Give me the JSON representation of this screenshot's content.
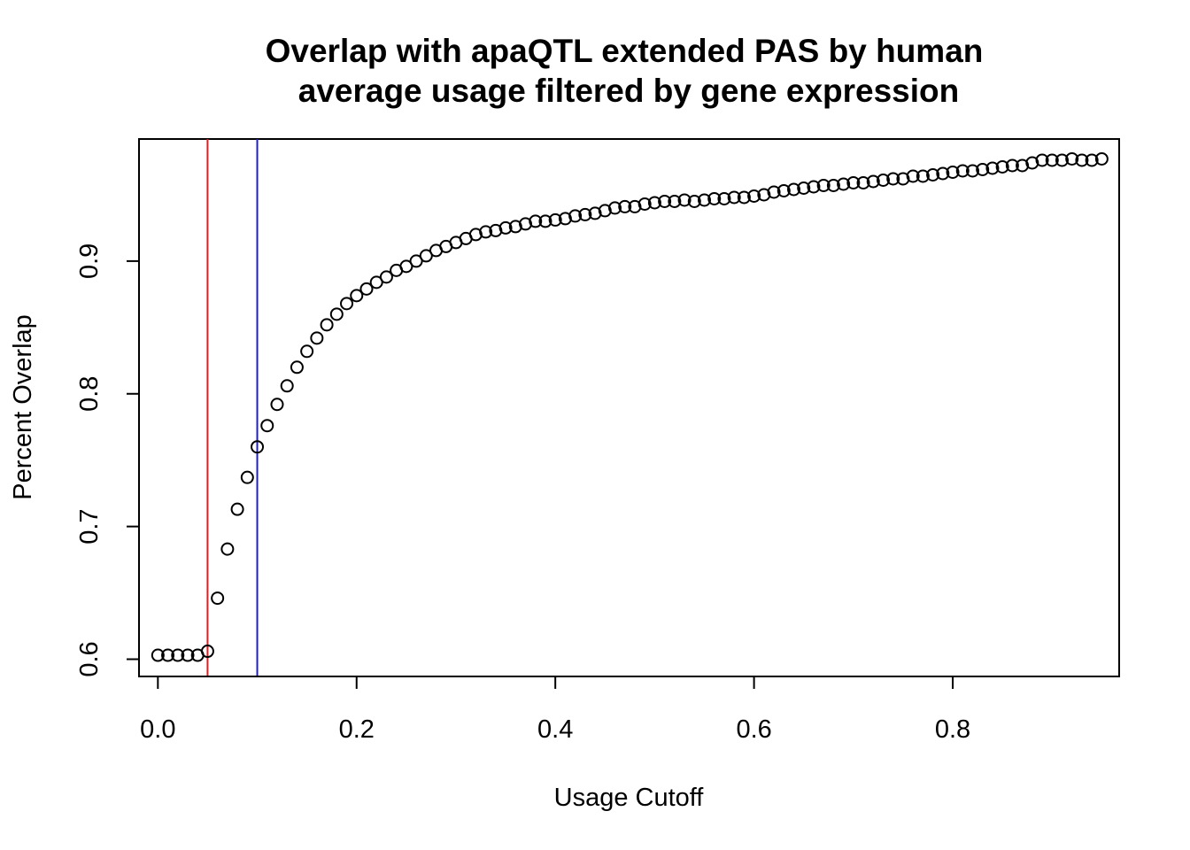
{
  "chart_data": {
    "type": "scatter",
    "title": [
      "Overlap with apaQTL extended PAS by human",
      "average usage filtered by gene expression"
    ],
    "xlabel": "Usage Cutoff",
    "ylabel": "Percent Overlap",
    "xlim": [
      -0.019,
      0.9675
    ],
    "ylim": [
      0.587,
      0.992
    ],
    "x_ticks": [
      0.0,
      0.2,
      0.4,
      0.6,
      0.8
    ],
    "x_tick_labels": [
      "0.0",
      "0.2",
      "0.4",
      "0.6",
      "0.8"
    ],
    "y_ticks": [
      0.6,
      0.7,
      0.8,
      0.9
    ],
    "y_tick_labels": [
      "0.6",
      "0.7",
      "0.8",
      "0.9"
    ],
    "grid": false,
    "marker": "open-circle",
    "vlines": [
      {
        "x": 0.05,
        "color": "#e41a1c"
      },
      {
        "x": 0.1,
        "color": "#1f1fbf"
      }
    ],
    "x": [
      0.0,
      0.01,
      0.02,
      0.03,
      0.04,
      0.05,
      0.06,
      0.07,
      0.08,
      0.09,
      0.1,
      0.11,
      0.12,
      0.13,
      0.14,
      0.15,
      0.16,
      0.17,
      0.18,
      0.19,
      0.2,
      0.21,
      0.22,
      0.23,
      0.24,
      0.25,
      0.26,
      0.27,
      0.28,
      0.29,
      0.3,
      0.31,
      0.32,
      0.33,
      0.34,
      0.35,
      0.36,
      0.37,
      0.38,
      0.39,
      0.4,
      0.41,
      0.42,
      0.43,
      0.44,
      0.45,
      0.46,
      0.47,
      0.48,
      0.49,
      0.5,
      0.51,
      0.52,
      0.53,
      0.54,
      0.55,
      0.56,
      0.57,
      0.58,
      0.59,
      0.6,
      0.61,
      0.62,
      0.63,
      0.64,
      0.65,
      0.66,
      0.67,
      0.68,
      0.69,
      0.7,
      0.71,
      0.72,
      0.73,
      0.74,
      0.75,
      0.76,
      0.77,
      0.78,
      0.79,
      0.8,
      0.81,
      0.82,
      0.83,
      0.84,
      0.85,
      0.86,
      0.87,
      0.88,
      0.89,
      0.9,
      0.91,
      0.92,
      0.93,
      0.94,
      0.95
    ],
    "y": [
      0.603,
      0.603,
      0.603,
      0.603,
      0.603,
      0.606,
      0.646,
      0.683,
      0.713,
      0.737,
      0.76,
      0.776,
      0.792,
      0.806,
      0.82,
      0.832,
      0.842,
      0.852,
      0.86,
      0.868,
      0.874,
      0.879,
      0.884,
      0.888,
      0.893,
      0.896,
      0.9,
      0.904,
      0.908,
      0.911,
      0.914,
      0.917,
      0.92,
      0.922,
      0.923,
      0.925,
      0.926,
      0.928,
      0.93,
      0.93,
      0.931,
      0.932,
      0.934,
      0.935,
      0.936,
      0.938,
      0.94,
      0.941,
      0.941,
      0.943,
      0.944,
      0.945,
      0.945,
      0.946,
      0.945,
      0.946,
      0.947,
      0.947,
      0.948,
      0.948,
      0.949,
      0.95,
      0.952,
      0.953,
      0.954,
      0.955,
      0.956,
      0.957,
      0.957,
      0.958,
      0.959,
      0.959,
      0.96,
      0.961,
      0.962,
      0.962,
      0.964,
      0.964,
      0.965,
      0.966,
      0.967,
      0.968,
      0.968,
      0.969,
      0.97,
      0.971,
      0.972,
      0.972,
      0.974,
      0.976,
      0.976,
      0.976,
      0.977,
      0.976,
      0.976,
      0.977
    ]
  }
}
